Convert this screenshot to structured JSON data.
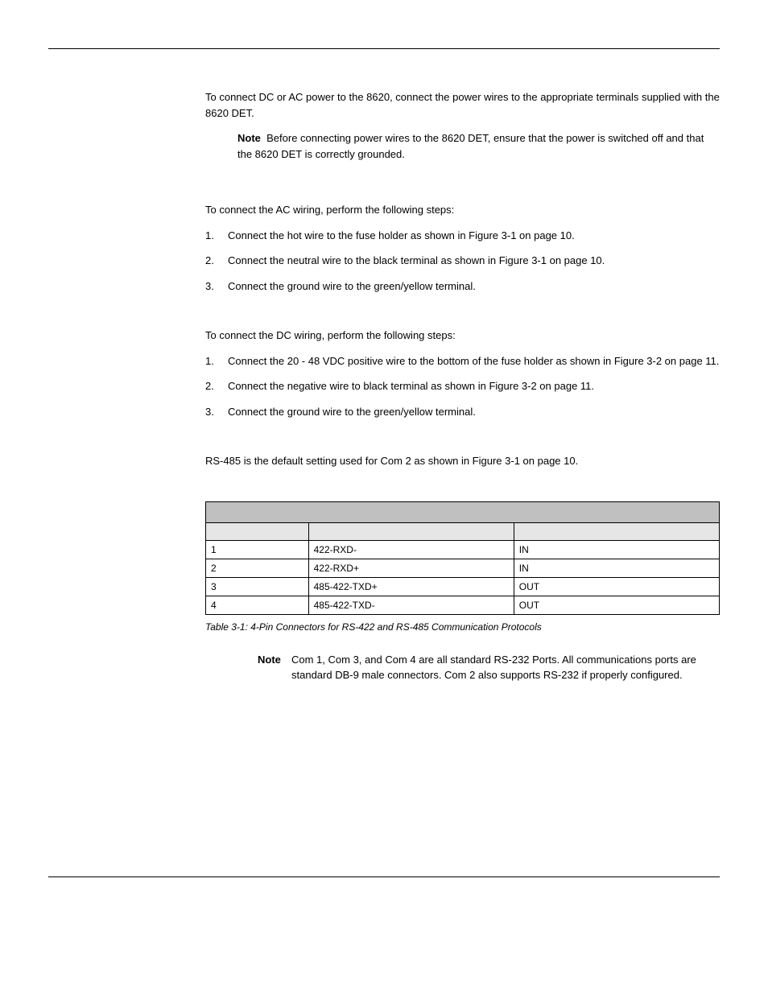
{
  "intro": "To connect DC or AC power to the 8620, connect the power wires to the appropriate terminals supplied with the 8620 DET.",
  "note1_label": "Note",
  "note1_text": "Before connecting power wires to the 8620 DET, ensure that the power is switched off and that the 8620 DET is correctly grounded.",
  "ac_intro": "To connect the AC wiring, perform the following steps:",
  "ac_steps": [
    "Connect the hot wire to the fuse holder as shown in Figure 3-1 on page 10.",
    "Connect the neutral wire to the black terminal as shown in Figure 3-1 on page 10.",
    "Connect the ground wire to the green/yellow terminal."
  ],
  "dc_intro": "To connect the DC wiring, perform the following steps:",
  "dc_steps": [
    "Connect the 20 - 48 VDC positive wire to the bottom of the fuse holder as shown in Figure 3-2 on page 11.",
    "Connect the negative wire to black terminal as shown in Figure 3-2 on page 11.",
    "Connect the ground wire to the green/yellow terminal."
  ],
  "rs485_text": "RS-485 is the default setting used for Com 2 as shown in Figure 3-1 on page 10.",
  "table": {
    "columns": [
      "",
      "",
      ""
    ],
    "rows": [
      [
        "1",
        "422-RXD-",
        "IN"
      ],
      [
        "2",
        "422-RXD+",
        "IN"
      ],
      [
        "3",
        "485-422-TXD+",
        "OUT"
      ],
      [
        "4",
        "485-422-TXD-",
        "OUT"
      ]
    ],
    "caption": "Table 3-1:    4-Pin Connectors for RS-422 and RS-485 Communication Protocols"
  },
  "note2_label": "Note",
  "note2_text": "Com 1, Com 3, and Com 4 are all standard RS-232 Ports. All communications ports are standard DB-9 male connectors. Com 2 also supports RS-232 if properly configured."
}
